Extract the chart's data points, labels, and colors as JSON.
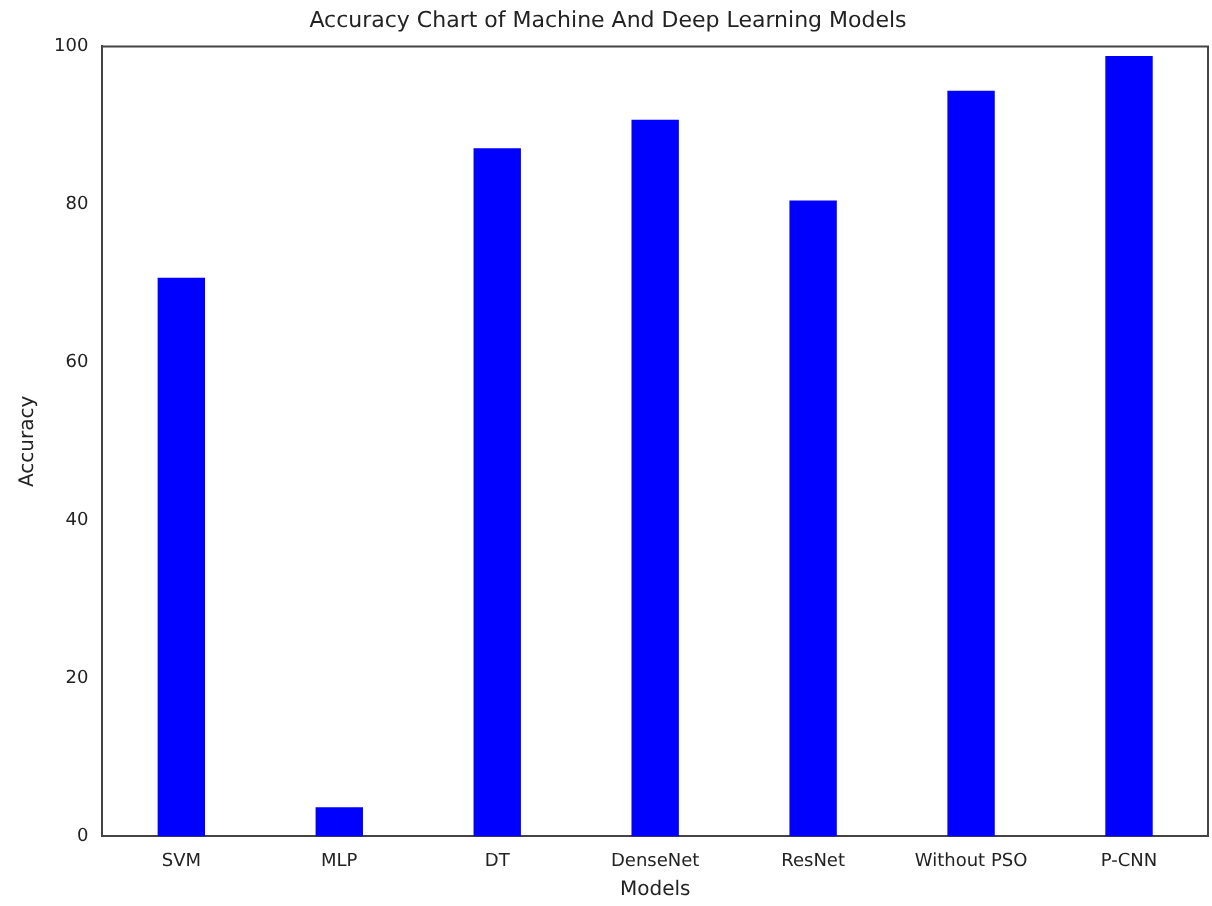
{
  "chart_data": {
    "type": "bar",
    "title": "Accuracy Chart of Machine And Deep Learning Models",
    "xlabel": "Models",
    "ylabel": "Accuracy",
    "categories": [
      "SVM",
      "MLP",
      "DT",
      "DenseNet",
      "ResNet",
      "Without PSO",
      "P-CNN"
    ],
    "values": [
      70.7,
      3.7,
      87.1,
      90.7,
      80.5,
      94.4,
      98.8
    ],
    "color": "#0000ff",
    "ylim": [
      0,
      100
    ],
    "yticks": [
      0,
      20,
      40,
      60,
      80,
      100
    ],
    "grid": false,
    "legend": false
  }
}
